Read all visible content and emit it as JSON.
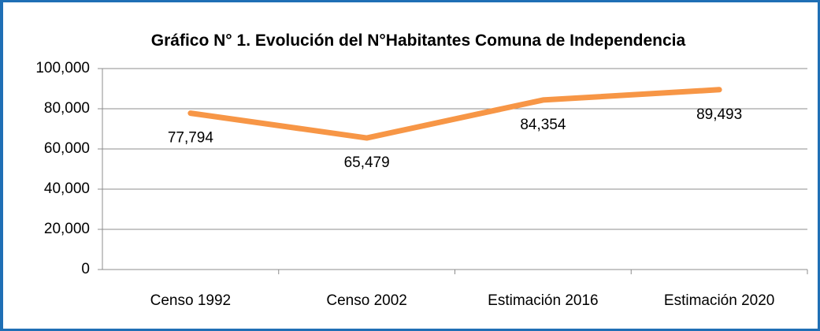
{
  "chart_data": {
    "type": "line",
    "title": "Gráfico N° 1. Evolución del N°Habitantes Comuna de Independencia",
    "categories": [
      "Censo 1992",
      "Censo 2002",
      "Estimación 2016",
      "Estimación 2020"
    ],
    "series": [
      {
        "name": "N°Habitantes",
        "color": "#f79646",
        "values": [
          77794,
          65479,
          84354,
          89493
        ],
        "value_labels": [
          "77,794",
          "65,479",
          "84,354",
          "89,493"
        ]
      }
    ],
    "ylim": [
      0,
      100000
    ],
    "yticks": [
      0,
      {
        "value": 20000,
        "label": "20,000"
      },
      {
        "value": 40000,
        "label": "40,000"
      },
      {
        "value": 60000,
        "label": "60,000"
      },
      {
        "value": 80000,
        "label": "80,000"
      },
      {
        "value": 100000,
        "label": "100,000"
      }
    ],
    "grid": true
  }
}
